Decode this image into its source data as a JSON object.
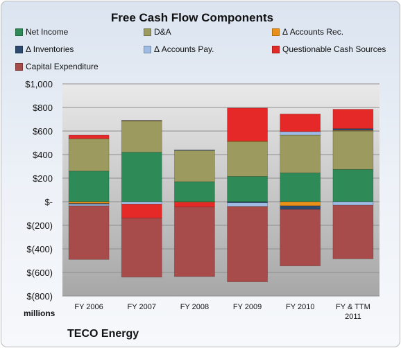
{
  "chart_data": {
    "type": "bar",
    "stacked": true,
    "title": "Free Cash Flow Components",
    "categories": [
      "FY 2006",
      "FY 2007",
      "FY 2008",
      "FY 2009",
      "FY 2010",
      "FY & TTM 2011"
    ],
    "category_lines": [
      [
        "FY 2006"
      ],
      [
        "FY 2007"
      ],
      [
        "FY 2008"
      ],
      [
        "FY 2009"
      ],
      [
        "FY 2010"
      ],
      [
        "FY & TTM",
        "2011"
      ]
    ],
    "ylim": [
      -800,
      1000
    ],
    "yticks": [
      -800,
      -600,
      -400,
      -200,
      0,
      200,
      400,
      600,
      800,
      1000
    ],
    "ytick_labels": [
      "$(800)",
      "$(600)",
      "$(400)",
      "$(200)",
      "$-",
      "$200",
      "$400",
      "$600",
      "$800",
      "$1,000"
    ],
    "y_unit_label": "millions",
    "grid": true,
    "legend_position": "top",
    "series": [
      {
        "name": "Net Income",
        "color": "#2e8b57",
        "values": [
          260,
          420,
          170,
          215,
          245,
          275
        ]
      },
      {
        "name": "D&A",
        "color": "#9c9a5e",
        "values": [
          275,
          265,
          265,
          295,
          320,
          325
        ]
      },
      {
        "name": "Δ Accounts Rec.",
        "color": "#e8901a",
        "values": [
          -15,
          5,
          -5,
          5,
          -35,
          5
        ]
      },
      {
        "name": "Δ Inventories",
        "color": "#2d4a70",
        "values": [
          -5,
          0,
          5,
          -10,
          -30,
          15
        ]
      },
      {
        "name": "Δ Accounts Pay.",
        "color": "#9dbbe3",
        "values": [
          -15,
          -20,
          0,
          -30,
          30,
          -30
        ]
      },
      {
        "name": "Questionable Cash Sources",
        "color": "#e52929",
        "values": [
          30,
          -120,
          -40,
          280,
          150,
          165
        ]
      },
      {
        "name": "Capital Expenditure",
        "color": "#a84b4b",
        "values": [
          -455,
          -500,
          -590,
          -640,
          -480,
          -455
        ]
      }
    ]
  },
  "legend_rows": [
    [
      "Net Income",
      "D&A",
      "Δ Accounts Rec."
    ],
    [
      "Δ Inventories",
      "Δ Accounts Pay.",
      "Questionable Cash Sources"
    ],
    [
      "Capital Expenditure"
    ]
  ],
  "footer": {
    "company": "TECO Energy"
  }
}
